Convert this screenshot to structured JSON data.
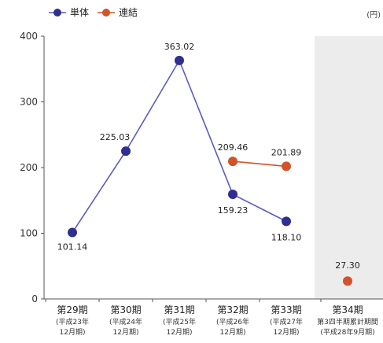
{
  "chart_data": {
    "type": "line",
    "unit": "(円)",
    "ylim": [
      0,
      400
    ],
    "yticks": [
      "0",
      "100",
      "200",
      "300",
      "400"
    ],
    "categories": [
      {
        "label": "第29期",
        "sub1": "(平成23年",
        "sub2": "12月期)"
      },
      {
        "label": "第30期",
        "sub1": "(平成24年",
        "sub2": "12月期)"
      },
      {
        "label": "第31期",
        "sub1": "(平成25年",
        "sub2": "12月期)"
      },
      {
        "label": "第32期",
        "sub1": "(平成26年",
        "sub2": "12月期)"
      },
      {
        "label": "第33期",
        "sub1": "(平成27年",
        "sub2": "12月期)"
      },
      {
        "label": "第34期",
        "sub1": "第3四半期累計期間",
        "sub2": "(平成28年9月期)"
      }
    ],
    "highlight_category_index": 5,
    "series": [
      {
        "name": "単体",
        "color": "#2e2f8f",
        "line_color": "#5a5bc4",
        "values": [
          101.14,
          225.03,
          363.02,
          159.23,
          118.1,
          null
        ],
        "labels": [
          "101.14",
          "225.03",
          "363.02",
          "159.23",
          "118.10",
          null
        ]
      },
      {
        "name": "連結",
        "color": "#d2522a",
        "line_color": "#d2522a",
        "values": [
          null,
          null,
          null,
          209.46,
          201.89,
          27.3
        ],
        "labels": [
          null,
          null,
          null,
          "209.46",
          "201.89",
          "27.30"
        ],
        "connected_indices": [
          3,
          4
        ]
      }
    ],
    "grid": false
  }
}
